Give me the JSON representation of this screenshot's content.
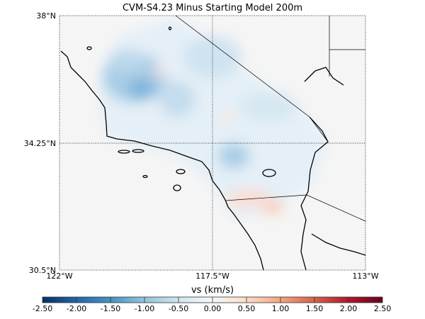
{
  "title": "CVM-S4.23 Minus Starting Model 200m",
  "map": {
    "lat_labels": [
      "38°N",
      "34.25°N",
      "30.5°N"
    ],
    "lon_labels": [
      "122°W",
      "117.5°W",
      "113°W"
    ],
    "lat_range": [
      30.5,
      38
    ],
    "lon_range": [
      -122,
      -113
    ],
    "background_color": "#f5f5f5"
  },
  "colorbar": {
    "label": "vs (km/s)",
    "range": [
      -2.5,
      2.5
    ],
    "ticks": [
      "-2.50",
      "-2.00",
      "-1.50",
      "-1.00",
      "-0.50",
      "0.00",
      "0.50",
      "1.00",
      "1.50",
      "2.00",
      "2.50"
    ],
    "colorscale": [
      "#053061",
      "#2166ac",
      "#4393c3",
      "#92c5de",
      "#d1e5f0",
      "#f7f7f7",
      "#fddbc7",
      "#f4a582",
      "#d6604d",
      "#b2182b",
      "#67001f"
    ]
  }
}
